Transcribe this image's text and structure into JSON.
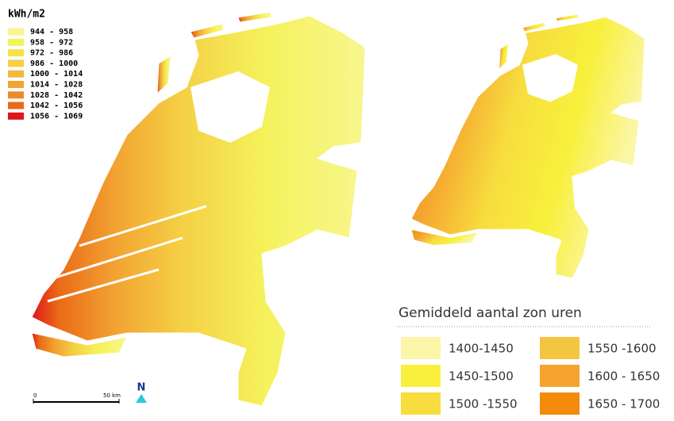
{
  "left_legend": {
    "title": "kWh/m2",
    "items": [
      {
        "label": "944 - 958",
        "color": "#f7f68e"
      },
      {
        "label": "958 - 972",
        "color": "#f5f25c"
      },
      {
        "label": "972 - 986",
        "color": "#f5e24a"
      },
      {
        "label": "986 - 1000",
        "color": "#f5d045"
      },
      {
        "label": "1000 - 1014",
        "color": "#f3b93c"
      },
      {
        "label": "1014 - 1028",
        "color": "#f2a332"
      },
      {
        "label": "1028 - 1042",
        "color": "#ef8a26"
      },
      {
        "label": "1042 - 1056",
        "color": "#ea6a17"
      },
      {
        "label": "1056 - 1069",
        "color": "#e0151b"
      }
    ]
  },
  "scale_bar": {
    "start": "0",
    "end": "50 km"
  },
  "north_arrow": {
    "label": "N"
  },
  "right_legend": {
    "title": "Gemiddeld aantal zon uren",
    "items": [
      {
        "label": "1400-1450",
        "color": "#fbf6a8"
      },
      {
        "label": "1450-1500",
        "color": "#f8f03c"
      },
      {
        "label": "1500 -1550",
        "color": "#f7dd3e"
      },
      {
        "label": "1550 -1600",
        "color": "#f4c540"
      },
      {
        "label": "1600 - 1650",
        "color": "#f5a430"
      },
      {
        "label": "1650 - 1700",
        "color": "#f38a0c"
      }
    ]
  }
}
